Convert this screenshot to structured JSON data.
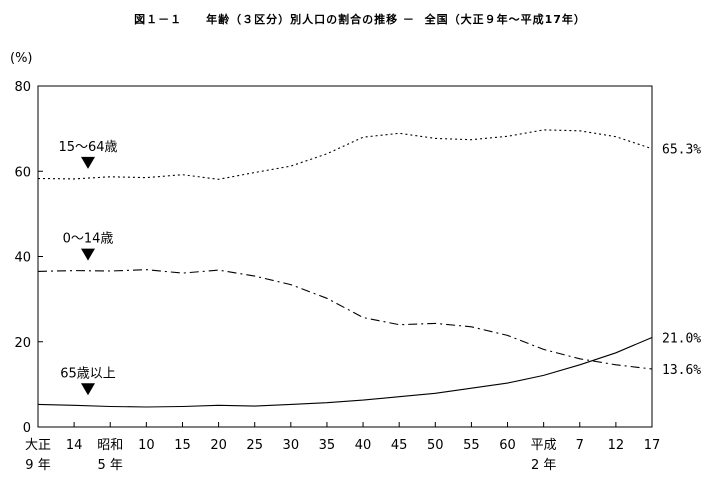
{
  "chart_data": {
    "type": "line",
    "title": "図１－１　　年齢（３区分）別人口の割合の推移 －  全国（大正９年～平成17年）",
    "ylabel": "(%)",
    "xlabel": "",
    "ylim": [
      0,
      80
    ],
    "yticks": [
      "0",
      "20",
      "40",
      "60",
      "80"
    ],
    "grid": false,
    "legend": "none",
    "x_ticks": [
      {
        "line1": "大正",
        "line2": "9 年"
      },
      {
        "line1": "14",
        "line2": ""
      },
      {
        "line1": "昭和",
        "line2": "5 年"
      },
      {
        "line1": "10",
        "line2": ""
      },
      {
        "line1": "15",
        "line2": ""
      },
      {
        "line1": "20",
        "line2": ""
      },
      {
        "line1": "25",
        "line2": ""
      },
      {
        "line1": "30",
        "line2": ""
      },
      {
        "line1": "35",
        "line2": ""
      },
      {
        "line1": "40",
        "line2": ""
      },
      {
        "line1": "45",
        "line2": ""
      },
      {
        "line1": "50",
        "line2": ""
      },
      {
        "line1": "55",
        "line2": ""
      },
      {
        "line1": "60",
        "line2": ""
      },
      {
        "line1": "平成",
        "line2": "2 年"
      },
      {
        "line1": "7",
        "line2": ""
      },
      {
        "line1": "12",
        "line2": ""
      },
      {
        "line1": "17",
        "line2": ""
      }
    ],
    "series": [
      {
        "name": "15～64歳",
        "style": "dotted",
        "values": [
          58.3,
          58.2,
          58.7,
          58.5,
          59.2,
          58.1,
          59.7,
          61.2,
          64.1,
          68.0,
          68.9,
          67.7,
          67.4,
          68.2,
          69.7,
          69.5,
          68.1,
          65.3
        ],
        "end_label": "65.3%"
      },
      {
        "name": "0～14歳",
        "style": "dashdot",
        "values": [
          36.5,
          36.7,
          36.6,
          36.9,
          36.1,
          36.8,
          35.4,
          33.4,
          30.2,
          25.7,
          24.0,
          24.3,
          23.5,
          21.5,
          18.2,
          16.0,
          14.6,
          13.6
        ],
        "end_label": "13.6%"
      },
      {
        "name": "65歳以上",
        "style": "solid",
        "values": [
          5.3,
          5.1,
          4.8,
          4.7,
          4.8,
          5.1,
          4.9,
          5.3,
          5.7,
          6.3,
          7.1,
          7.9,
          9.1,
          10.3,
          12.1,
          14.6,
          17.4,
          21.0
        ],
        "end_label": "21.0%"
      }
    ],
    "annotations": [
      {
        "text": "15～64歳",
        "series": 0
      },
      {
        "text": "0～14歳",
        "series": 1
      },
      {
        "text": "65歳以上",
        "series": 2
      }
    ]
  }
}
